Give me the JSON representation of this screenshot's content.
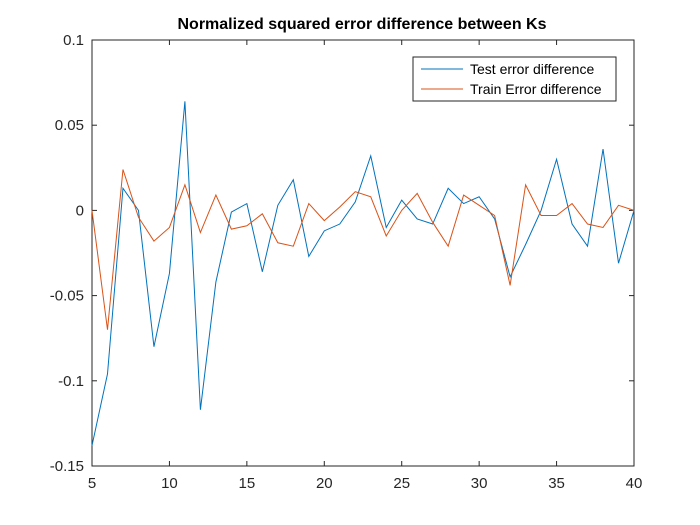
{
  "chart_data": {
    "type": "line",
    "title": "Normalized squared error difference between Ks",
    "xlabel": "",
    "ylabel": "",
    "xlim": [
      5,
      40
    ],
    "ylim": [
      -0.15,
      0.1
    ],
    "xticks": [
      5,
      10,
      15,
      20,
      25,
      30,
      35,
      40
    ],
    "yticks": [
      -0.15,
      -0.1,
      -0.05,
      0,
      0.05,
      0.1
    ],
    "xtick_labels": [
      "5",
      "10",
      "15",
      "20",
      "25",
      "30",
      "35",
      "40"
    ],
    "ytick_labels": [
      "-0.15",
      "-0.1",
      "-0.05",
      "0",
      "0.05",
      "0.1"
    ],
    "grid": false,
    "legend_position": "top-right",
    "x": [
      5,
      6,
      7,
      8,
      9,
      10,
      11,
      12,
      13,
      14,
      15,
      16,
      17,
      18,
      19,
      20,
      21,
      22,
      23,
      24,
      25,
      26,
      27,
      28,
      29,
      30,
      31,
      32,
      33,
      34,
      35,
      36,
      37,
      38,
      39,
      40
    ],
    "series": [
      {
        "name": "Test error difference",
        "color": "#0072BD",
        "values": [
          -0.138,
          -0.096,
          0.013,
          0.0,
          -0.08,
          -0.037,
          0.064,
          -0.117,
          -0.042,
          -0.001,
          0.004,
          -0.036,
          0.003,
          0.018,
          -0.027,
          -0.012,
          -0.008,
          0.005,
          0.032,
          -0.01,
          0.006,
          -0.005,
          -0.008,
          0.013,
          0.004,
          0.008,
          -0.005,
          -0.039,
          -0.02,
          0.0,
          0.03,
          -0.008,
          -0.021,
          0.036,
          -0.031,
          0.0
        ]
      },
      {
        "name": "Train Error difference",
        "color": "#D95319",
        "values": [
          0.0,
          -0.07,
          0.024,
          -0.004,
          -0.018,
          -0.01,
          0.015,
          -0.013,
          0.009,
          -0.011,
          -0.009,
          -0.002,
          -0.019,
          -0.021,
          0.004,
          -0.006,
          0.002,
          0.011,
          0.008,
          -0.015,
          0.0,
          0.01,
          -0.007,
          -0.021,
          0.009,
          0.003,
          -0.003,
          -0.044,
          0.015,
          -0.003,
          -0.003,
          0.004,
          -0.008,
          -0.01,
          0.003,
          0.0
        ]
      }
    ]
  }
}
